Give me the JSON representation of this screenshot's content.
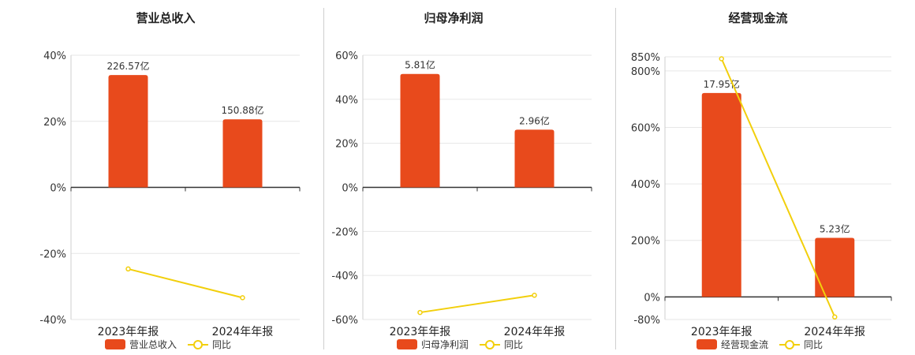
{
  "colors": {
    "bar": "#e84a1c",
    "line": "#f2cf0c",
    "grid": "#e6e6e6",
    "axis": "#333333"
  },
  "chart_data": [
    {
      "type": "bar",
      "title": "营业总收入",
      "categories": [
        "2023年年报",
        "2024年年报"
      ],
      "series": [
        {
          "name": "营业总收入",
          "type": "bar",
          "labels": [
            "226.57亿",
            "150.88亿"
          ]
        },
        {
          "name": "同比",
          "type": "line",
          "values": [
            -24.7,
            -33.4
          ]
        }
      ],
      "bar_heights_pct": [
        34.0,
        20.6
      ],
      "yticks": [
        "40%",
        "20%",
        "0%",
        "-20%",
        "-40%"
      ],
      "ylim": [
        -40,
        40
      ]
    },
    {
      "type": "bar",
      "title": "归母净利润",
      "categories": [
        "2023年年报",
        "2024年年报"
      ],
      "series": [
        {
          "name": "归母净利润",
          "type": "bar",
          "labels": [
            "5.81亿",
            "2.96亿"
          ]
        },
        {
          "name": "同比",
          "type": "line",
          "values": [
            -56.8,
            -49.0
          ]
        }
      ],
      "bar_heights_pct": [
        51.5,
        26.2
      ],
      "yticks": [
        "60%",
        "40%",
        "20%",
        "0%",
        "-20%",
        "-40%",
        "-60%"
      ],
      "ylim": [
        -60,
        60
      ]
    },
    {
      "type": "bar",
      "title": "经营现金流",
      "categories": [
        "2023年年报",
        "2024年年报"
      ],
      "series": [
        {
          "name": "经营现金流",
          "type": "bar",
          "labels": [
            "17.95亿",
            "5.23亿"
          ]
        },
        {
          "name": "同比",
          "type": "line",
          "values": [
            843,
            -71
          ]
        }
      ],
      "bar_heights_pct": [
        722,
        209
      ],
      "yticks": [
        "850%",
        "800%",
        "600%",
        "400%",
        "200%",
        "0%",
        "-80%"
      ],
      "ytick_values": [
        850,
        800,
        600,
        400,
        200,
        0,
        -80
      ],
      "ylim": [
        -80,
        850
      ]
    }
  ]
}
